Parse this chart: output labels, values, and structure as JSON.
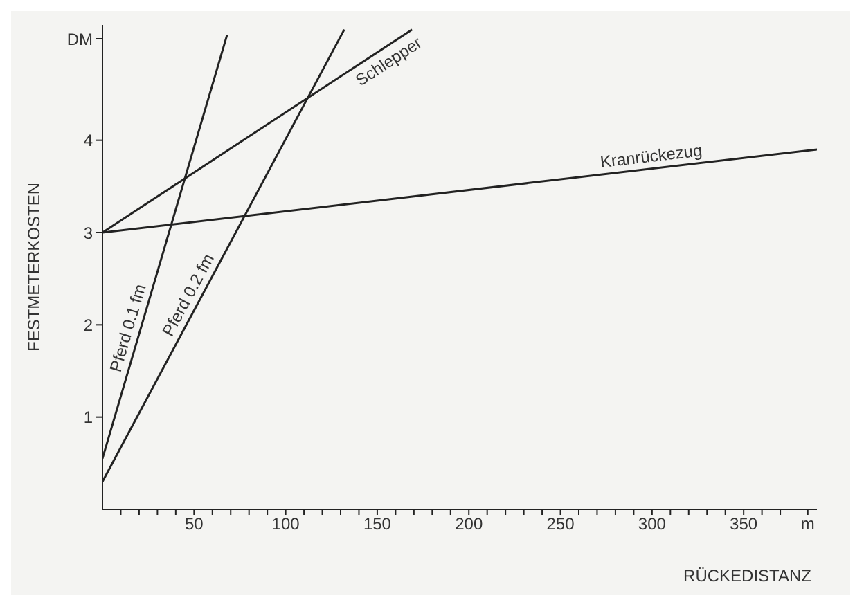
{
  "chart_data": {
    "type": "line",
    "xlabel": "RÜCKEDISTANZ",
    "ylabel": "FESTMETERKOSTEN",
    "xlim": [
      0,
      390
    ],
    "ylim": [
      0,
      5.25
    ],
    "xticks": [
      {
        "value": 10,
        "label": null
      },
      {
        "value": 20,
        "label": null
      },
      {
        "value": 30,
        "label": null
      },
      {
        "value": 40,
        "label": null
      },
      50,
      {
        "value": 60,
        "label": null
      },
      {
        "value": 70,
        "label": null
      },
      {
        "value": 80,
        "label": null
      },
      {
        "value": 90,
        "label": null
      },
      100,
      {
        "value": 110,
        "label": null
      },
      {
        "value": 120,
        "label": null
      },
      {
        "value": 130,
        "label": null
      },
      {
        "value": 140,
        "label": null
      },
      150,
      {
        "value": 160,
        "label": null
      },
      {
        "value": 170,
        "label": null
      },
      {
        "value": 180,
        "label": null
      },
      {
        "value": 190,
        "label": null
      },
      200,
      {
        "value": 210,
        "label": null
      },
      {
        "value": 220,
        "label": null
      },
      {
        "value": 230,
        "label": null
      },
      {
        "value": 240,
        "label": null
      },
      250,
      {
        "value": 260,
        "label": null
      },
      {
        "value": 270,
        "label": null
      },
      {
        "value": 280,
        "label": null
      },
      {
        "value": 290,
        "label": null
      },
      300,
      {
        "value": 310,
        "label": null
      },
      {
        "value": 320,
        "label": null
      },
      {
        "value": 330,
        "label": null
      },
      {
        "value": 340,
        "label": null
      },
      350,
      {
        "value": 360,
        "label": null
      },
      {
        "value": 370,
        "label": null
      },
      {
        "value": 385,
        "label": "m"
      }
    ],
    "yticks": [
      1,
      2,
      3,
      4,
      {
        "value": 5.1,
        "label": "DM"
      }
    ],
    "grid": false,
    "legend": false,
    "marker": "none",
    "line_style": "solid",
    "series": [
      {
        "name": "Pferd 0.1 fm",
        "color": "#222222",
        "x": [
          0,
          68
        ],
        "values": [
          0.55,
          5.14
        ]
      },
      {
        "name": "Pferd 0.2 fm",
        "color": "#222222",
        "x": [
          0,
          132
        ],
        "values": [
          0.3,
          5.2
        ]
      },
      {
        "name": "Schlepper",
        "color": "#222222",
        "x": [
          0,
          169
        ],
        "values": [
          3,
          5.2
        ]
      },
      {
        "name": "Kranrückezug",
        "color": "#222222",
        "x": [
          0,
          390
        ],
        "values": [
          3,
          3.9
        ]
      }
    ]
  }
}
